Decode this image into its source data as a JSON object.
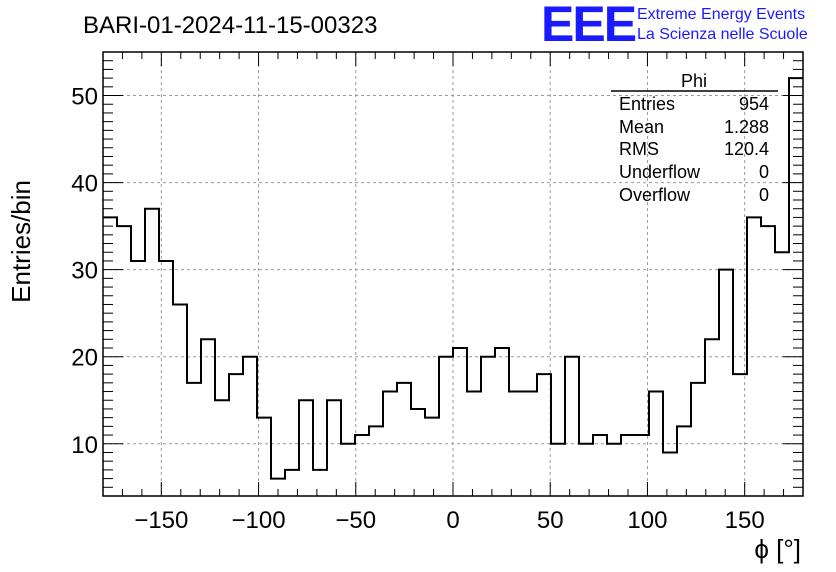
{
  "chart_data": {
    "type": "histogram",
    "title": "BARI-01-2024-11-15-00323",
    "xlabel": "ϕ [°]",
    "ylabel": "Entries/bin",
    "xlim": [
      -180,
      180
    ],
    "ylim": [
      4,
      55
    ],
    "x_ticks": [
      -150,
      -100,
      -50,
      0,
      50,
      100,
      150
    ],
    "y_ticks": [
      10,
      20,
      30,
      40,
      50
    ],
    "grid": true,
    "bin_width": 7.2,
    "bin_low_edges": [
      -180,
      -172.8,
      -165.6,
      -158.4,
      -151.2,
      -144,
      -136.8,
      -129.6,
      -122.4,
      -115.2,
      -108,
      -100.8,
      -93.6,
      -86.4,
      -79.2,
      -72,
      -64.8,
      -57.6,
      -50.4,
      -43.2,
      -36,
      -28.8,
      -21.6,
      -14.4,
      -7.2,
      0,
      7.2,
      14.4,
      21.6,
      28.8,
      36,
      43.2,
      50.4,
      57.6,
      64.8,
      72,
      79.2,
      86.4,
      93.6,
      100.8,
      108,
      115.2,
      122.4,
      129.6,
      136.8,
      144,
      151.2,
      158.4,
      165.6,
      172.8
    ],
    "values": [
      36,
      35,
      31,
      37,
      31,
      26,
      17,
      22,
      15,
      18,
      20,
      13,
      6,
      7,
      15,
      7,
      15,
      10,
      11,
      12,
      16,
      17,
      14,
      13,
      20,
      21,
      16,
      20,
      21,
      16,
      16,
      18,
      10,
      20,
      10,
      11,
      10,
      11,
      11,
      16,
      9,
      12,
      17,
      22,
      30,
      18,
      36,
      35,
      32,
      52
    ],
    "stats": {
      "name": "Phi",
      "rows": [
        {
          "label": "Entries",
          "value": "954"
        },
        {
          "label": "Mean",
          "value": "1.288"
        },
        {
          "label": "RMS",
          "value": "120.4"
        },
        {
          "label": "Underflow",
          "value": "0"
        },
        {
          "label": "Overflow",
          "value": "0"
        }
      ]
    }
  },
  "logo": {
    "mark": "EEE",
    "line1": "Extreme Energy Events",
    "line2": "La Scienza nelle Scuole",
    "color": "#1a1aff"
  }
}
